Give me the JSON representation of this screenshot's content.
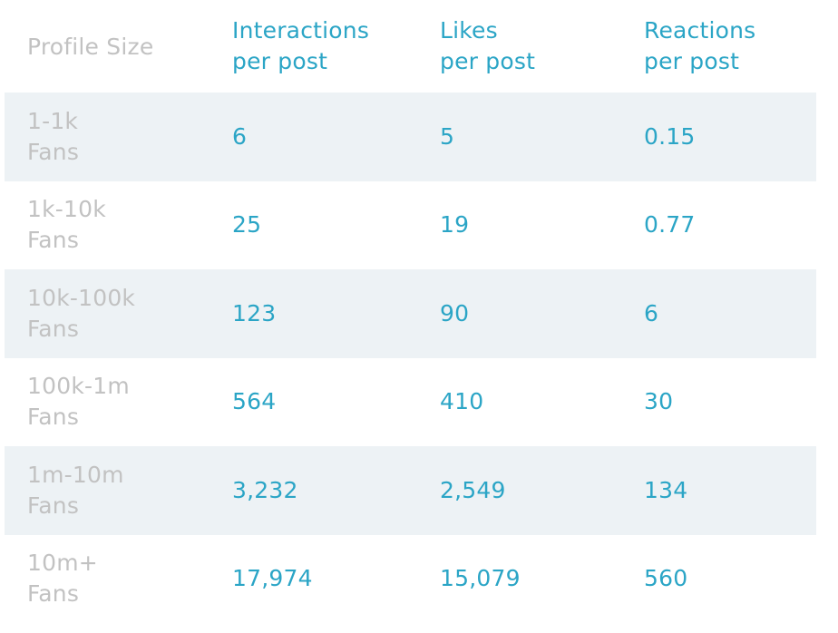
{
  "chart_data": {
    "type": "table",
    "header": {
      "profile_size": "Profile Size",
      "interactions": [
        "Interactions",
        "per post"
      ],
      "likes": [
        "Likes",
        "per post"
      ],
      "reactions": [
        "Reactions",
        "per post"
      ]
    },
    "columns": [
      "Profile Size",
      "Interactions per post",
      "Likes per post",
      "Reactions per post"
    ],
    "rows": [
      {
        "size": [
          "1-1k",
          "Fans"
        ],
        "interactions": "6",
        "likes": "5",
        "reactions": "0.15"
      },
      {
        "size": [
          "1k-10k",
          "Fans"
        ],
        "interactions": "25",
        "likes": "19",
        "reactions": "0.77"
      },
      {
        "size": [
          "10k-100k",
          "Fans"
        ],
        "interactions": "123",
        "likes": "90",
        "reactions": "6"
      },
      {
        "size": [
          "100k-1m",
          "Fans"
        ],
        "interactions": "564",
        "likes": "410",
        "reactions": "30"
      },
      {
        "size": [
          "1m-10m",
          "Fans"
        ],
        "interactions": "3,232",
        "likes": "2,549",
        "reactions": "134"
      },
      {
        "size": [
          "10m+",
          "Fans"
        ],
        "interactions": "17,974",
        "likes": "15,079",
        "reactions": "560"
      }
    ],
    "colors": {
      "label_text": "#c2c2c2",
      "value_text": "#2ba5c6",
      "shaded_row": "#edf2f5",
      "background": "#ffffff"
    }
  }
}
